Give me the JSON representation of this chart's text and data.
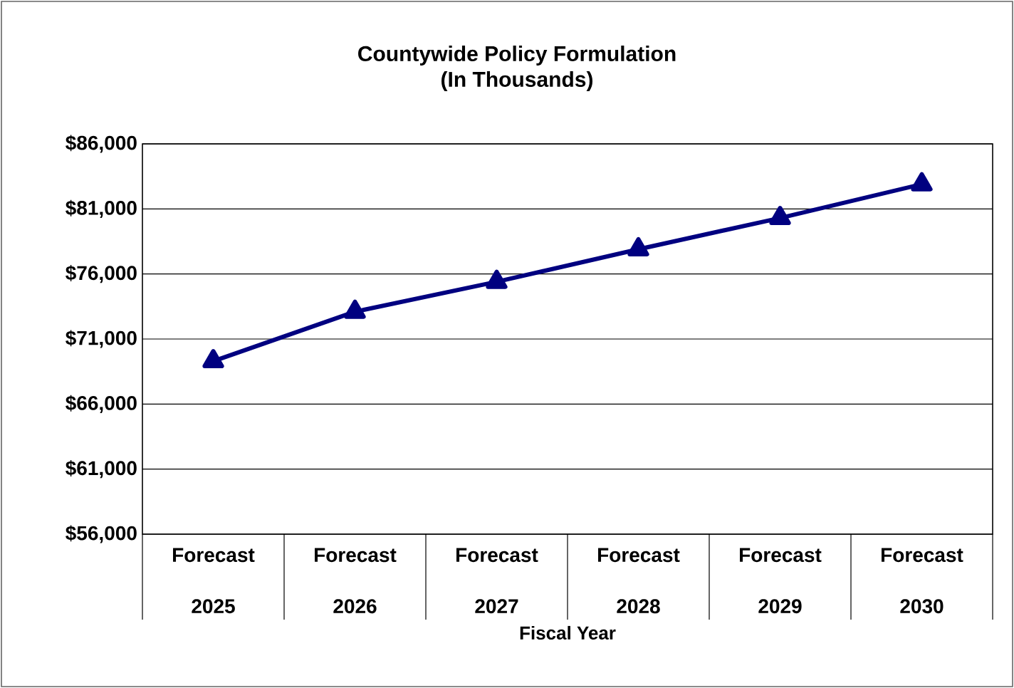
{
  "chart_data": {
    "type": "line",
    "title": "Countywide Policy Formulation",
    "subtitle": "(In Thousands)",
    "xlabel": "Fiscal Year",
    "categories": [
      "Forecast 2025",
      "Forecast 2026",
      "Forecast 2027",
      "Forecast 2028",
      "Forecast 2029",
      "Forecast 2030"
    ],
    "series": [
      {
        "color": "#000080",
        "values": [
          69300,
          73100,
          75400,
          77900,
          80300,
          82900
        ]
      }
    ],
    "ylim": [
      56000,
      86000
    ],
    "yticks": [
      {
        "value": 56000,
        "label": "$56,000"
      },
      {
        "value": 61000,
        "label": "$61,000"
      },
      {
        "value": 66000,
        "label": "$66,000"
      },
      {
        "value": 71000,
        "label": "$71,000"
      },
      {
        "value": 76000,
        "label": "$76,000"
      },
      {
        "value": 81000,
        "label": "$81,000"
      },
      {
        "value": 86000,
        "label": "$86,000"
      }
    ],
    "grid": "y",
    "marker": "triangle",
    "line_style": "solid"
  }
}
